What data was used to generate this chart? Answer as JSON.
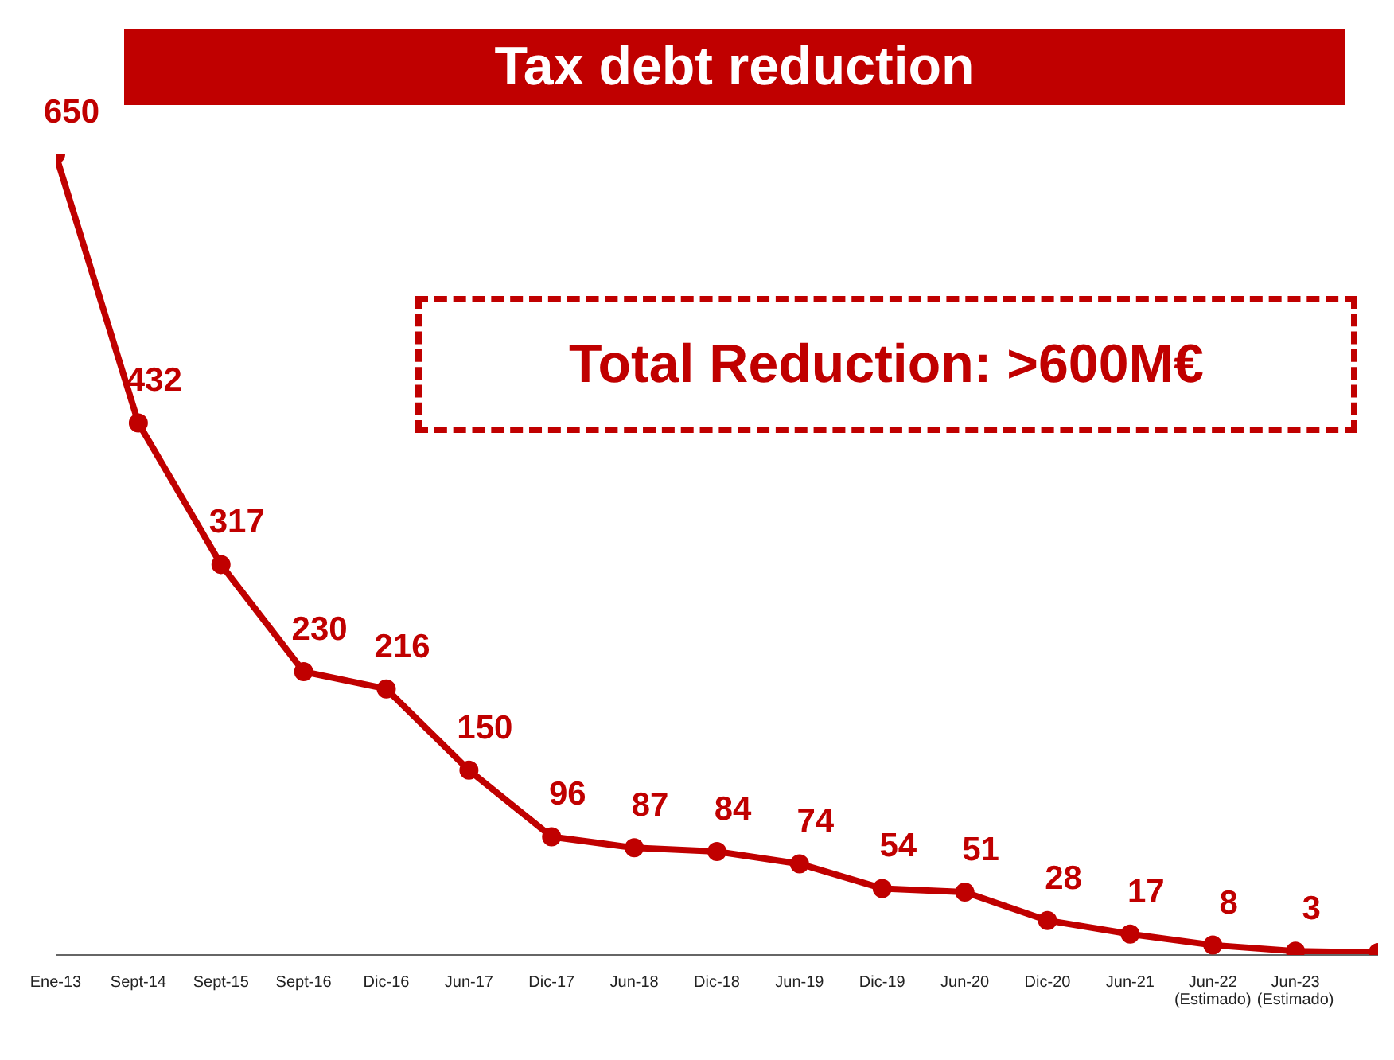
{
  "chart_data": {
    "type": "line",
    "title": "Tax debt reduction",
    "categories": [
      "Ene-13",
      "Sept-14",
      "Sept-15",
      "Sept-16",
      "Dic-16",
      "Jun-17",
      "Dic-17",
      "Jun-18",
      "Dic-18",
      "Jun-19",
      "Dic-19",
      "Jun-20",
      "Dic-20",
      "Jun-21",
      "Jun-22\n(Estimado)",
      "Jun-23\n(Estimado)",
      null
    ],
    "series": [
      {
        "color": "#c00000",
        "values": [
          650,
          432,
          317,
          230,
          216,
          150,
          96,
          87,
          84,
          74,
          54,
          51,
          28,
          17,
          8,
          3,
          2
        ],
        "value_labels": [
          "650",
          "432",
          "317",
          "230",
          "216",
          "150",
          "96",
          "87",
          "84",
          "74",
          "54",
          "51",
          "28",
          "17",
          "8",
          "3",
          null
        ]
      }
    ],
    "annotations": [
      "Total Reduction: >600M€"
    ],
    "marker": "circle"
  }
}
